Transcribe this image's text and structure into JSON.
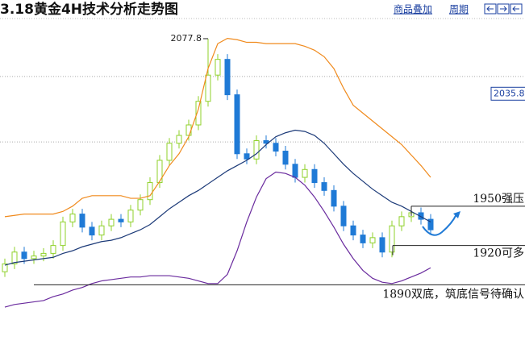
{
  "chart_data": {
    "type": "candlestick",
    "title": "3.18黄金4H技术分析走势图",
    "menu": [
      "商品叠加",
      "周期"
    ],
    "up_color": "#8fd12a",
    "down_color": "#1f7ad6",
    "open": [
      1900,
      1906,
      1915,
      1910,
      1912,
      1914,
      1920,
      1938,
      1944,
      1934,
      1928,
      1935,
      1940,
      1938,
      1947,
      1955,
      1968,
      1985,
      1998,
      2004,
      2012,
      2030,
      2050,
      2062,
      2035,
      1990,
      1986,
      2000,
      1998,
      1992,
      1982,
      1972,
      1978,
      1968,
      1962,
      1950,
      1935,
      1928,
      1922,
      1926,
      1915,
      1935,
      1942,
      1945,
      1940
    ],
    "high": [
      1910,
      1919,
      1919,
      1916,
      1918,
      1924,
      1942,
      1948,
      1948,
      1938,
      1939,
      1944,
      1944,
      1951,
      1959,
      1972,
      1989,
      2002,
      2008,
      2016,
      2034,
      2077.8,
      2066,
      2066,
      2039,
      1994,
      2004,
      2004,
      2002,
      1996,
      1986,
      1982,
      1982,
      1972,
      1966,
      1954,
      1939,
      1932,
      1930,
      1930,
      1939,
      1946,
      1949,
      1949,
      1944
    ],
    "low": [
      1896,
      1902,
      1906,
      1906,
      1908,
      1910,
      1916,
      1934,
      1930,
      1924,
      1924,
      1931,
      1934,
      1934,
      1943,
      1951,
      1964,
      1981,
      1994,
      2000,
      2008,
      2026,
      2046,
      2031,
      1986,
      1982,
      1982,
      1994,
      1988,
      1978,
      1968,
      1968,
      1964,
      1958,
      1946,
      1931,
      1924,
      1918,
      1918,
      1911,
      1911,
      1931,
      1938,
      1936,
      1928
    ],
    "close": [
      1906,
      1915,
      1910,
      1912,
      1914,
      1920,
      1938,
      1944,
      1934,
      1928,
      1935,
      1940,
      1938,
      1947,
      1955,
      1968,
      1985,
      1998,
      2004,
      2012,
      2030,
      2050,
      2062,
      2035,
      1990,
      1986,
      2000,
      1998,
      1992,
      1982,
      1972,
      1978,
      1968,
      1962,
      1950,
      1935,
      1928,
      1922,
      1926,
      1915,
      1935,
      1942,
      1945,
      1940,
      1932
    ],
    "series": [
      {
        "color": "#f08a1c",
        "values": [
          1942,
          1943,
          1944,
          1944,
          1944,
          1944,
          1946,
          1950,
          1956,
          1958,
          1958,
          1958,
          1958,
          1956,
          1956,
          1958,
          1969,
          1981,
          1990,
          2003,
          2024,
          2055,
          2074,
          2078,
          2077,
          2075,
          2075,
          2074,
          2074,
          2074,
          2074,
          2072,
          2069,
          2064,
          2055,
          2040,
          2027,
          2021,
          2015,
          2009,
          2003,
          1997,
          1989,
          1981,
          1972
        ]
      },
      {
        "color": "#1c3a78",
        "values": [
          1905,
          1907,
          1908,
          1909,
          1910,
          1911,
          1914,
          1916,
          1919,
          1921,
          1923,
          1924,
          1926,
          1929,
          1932,
          1936,
          1942,
          1948,
          1953,
          1958,
          1962,
          1967,
          1972,
          1977,
          1981,
          1985,
          1990,
          1997,
          2003,
          2006,
          2008,
          2007,
          2004,
          1998,
          1990,
          1982,
          1975,
          1969,
          1963,
          1958,
          1953,
          1950,
          1946,
          1942,
          1938
        ]
      },
      {
        "color": "#6a2b9e",
        "values": [
          1873,
          1875,
          1876,
          1877,
          1878,
          1881,
          1883,
          1886,
          1888,
          1891,
          1893,
          1894,
          1895,
          1896,
          1896,
          1897,
          1897,
          1897,
          1896,
          1895,
          1893,
          1891,
          1891,
          1898,
          1916,
          1938,
          1957,
          1971,
          1976,
          1975,
          1972,
          1966,
          1957,
          1946,
          1934,
          1921,
          1910,
          1901,
          1895,
          1892,
          1891,
          1893,
          1896,
          1899,
          1903
        ]
      }
    ],
    "ylim": [
      1838,
      2095
    ],
    "gridlines": [
      2049,
      1999
    ],
    "high_label": "2077.8",
    "price_tag": 2035.8,
    "annotations": [
      {
        "value": 1950,
        "text": "1950强压"
      },
      {
        "value": 1920,
        "text": "1920可多"
      },
      {
        "value": 1890,
        "text": "1890双底，筑底信号待确认"
      }
    ]
  }
}
